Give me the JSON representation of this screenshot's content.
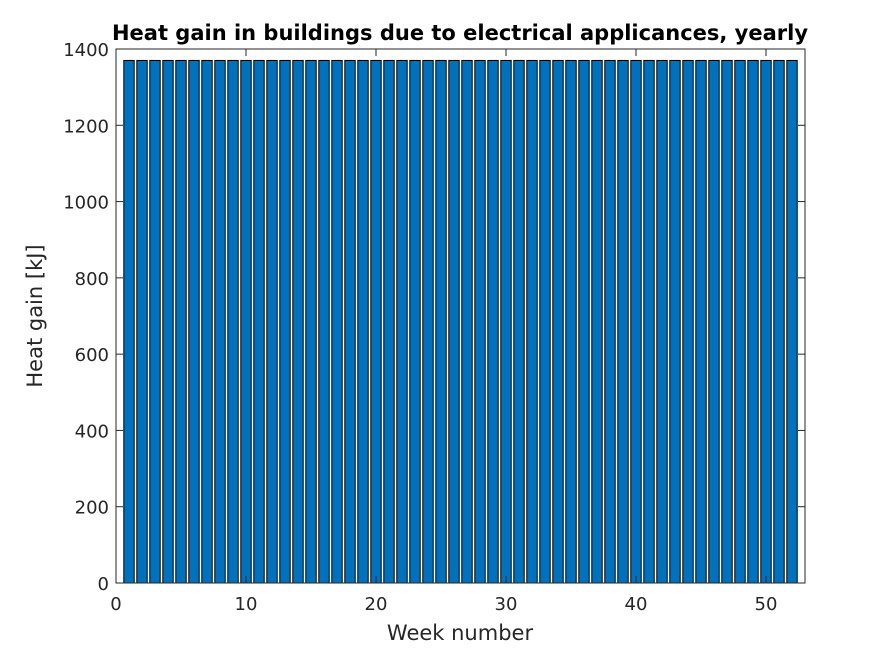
{
  "chart_data": {
    "type": "bar",
    "title": "Heat gain in buildings due to electrical applicances, yearly",
    "xlabel": "Week number",
    "ylabel": "Heat gain [kJ]",
    "x": [
      1,
      2,
      3,
      4,
      5,
      6,
      7,
      8,
      9,
      10,
      11,
      12,
      13,
      14,
      15,
      16,
      17,
      18,
      19,
      20,
      21,
      22,
      23,
      24,
      25,
      26,
      27,
      28,
      29,
      30,
      31,
      32,
      33,
      34,
      35,
      36,
      37,
      38,
      39,
      40,
      41,
      42,
      43,
      44,
      45,
      46,
      47,
      48,
      49,
      50,
      51,
      52
    ],
    "values": [
      1370,
      1370,
      1370,
      1370,
      1370,
      1370,
      1370,
      1370,
      1370,
      1370,
      1370,
      1370,
      1370,
      1370,
      1370,
      1370,
      1370,
      1370,
      1370,
      1370,
      1370,
      1370,
      1370,
      1370,
      1370,
      1370,
      1370,
      1370,
      1370,
      1370,
      1370,
      1370,
      1370,
      1370,
      1370,
      1370,
      1370,
      1370,
      1370,
      1370,
      1370,
      1370,
      1370,
      1370,
      1370,
      1370,
      1370,
      1370,
      1370,
      1370,
      1370,
      1370
    ],
    "xlim": [
      0,
      53
    ],
    "ylim": [
      0,
      1400
    ],
    "xticks": [
      0,
      10,
      20,
      30,
      40,
      50
    ],
    "yticks": [
      0,
      200,
      400,
      600,
      800,
      1000,
      1200,
      1400
    ],
    "grid": false,
    "bar_color": "#0072BD"
  }
}
